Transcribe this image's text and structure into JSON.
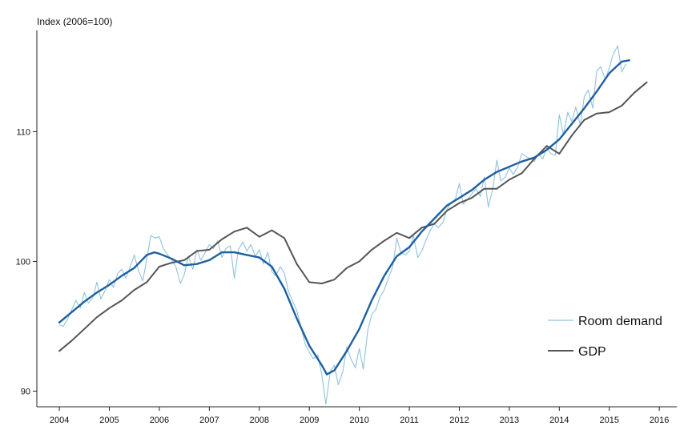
{
  "chart_data": {
    "type": "line",
    "ylabel": "Index (2006=100)",
    "xlim": [
      2003.55,
      2016.35
    ],
    "ylim": [
      88.8,
      117.8
    ],
    "x_ticks": [
      2004,
      2005,
      2006,
      2007,
      2008,
      2009,
      2010,
      2011,
      2012,
      2013,
      2014,
      2015,
      2016
    ],
    "x_tick_labels": [
      "2004",
      "2005",
      "2006",
      "2007",
      "2008",
      "2009",
      "2010",
      "2011",
      "2012",
      "2013",
      "2014",
      "2015",
      "2016"
    ],
    "y_ticks": [
      90,
      100,
      110
    ],
    "y_tick_labels": [
      "90",
      "100",
      "110"
    ],
    "grid": false,
    "legend_position": "bottom-right",
    "colors": {
      "room_demand_raw": "#8fc3dd",
      "room_demand_trend": "#1f5fa0",
      "gdp": "#555555"
    },
    "series": [
      {
        "name": "Room demand",
        "style": "raw",
        "x": [
          2004.0,
          2004.08,
          2004.17,
          2004.25,
          2004.33,
          2004.42,
          2004.5,
          2004.58,
          2004.67,
          2004.75,
          2004.83,
          2004.92,
          2005.0,
          2005.08,
          2005.17,
          2005.25,
          2005.33,
          2005.42,
          2005.5,
          2005.58,
          2005.67,
          2005.75,
          2005.83,
          2005.92,
          2006.0,
          2006.08,
          2006.17,
          2006.25,
          2006.33,
          2006.42,
          2006.5,
          2006.58,
          2006.67,
          2006.75,
          2006.83,
          2006.92,
          2007.0,
          2007.08,
          2007.17,
          2007.25,
          2007.33,
          2007.42,
          2007.5,
          2007.58,
          2007.67,
          2007.75,
          2007.83,
          2007.92,
          2008.0,
          2008.08,
          2008.17,
          2008.25,
          2008.33,
          2008.42,
          2008.5,
          2008.58,
          2008.67,
          2008.75,
          2008.83,
          2008.92,
          2009.0,
          2009.08,
          2009.17,
          2009.25,
          2009.33,
          2009.42,
          2009.5,
          2009.58,
          2009.67,
          2009.75,
          2009.83,
          2009.92,
          2010.0,
          2010.08,
          2010.17,
          2010.25,
          2010.33,
          2010.42,
          2010.5,
          2010.58,
          2010.67,
          2010.75,
          2010.83,
          2010.92,
          2011.0,
          2011.08,
          2011.17,
          2011.25,
          2011.33,
          2011.42,
          2011.5,
          2011.58,
          2011.67,
          2011.75,
          2011.83,
          2011.92,
          2012.0,
          2012.08,
          2012.17,
          2012.25,
          2012.33,
          2012.42,
          2012.5,
          2012.58,
          2012.67,
          2012.75,
          2012.83,
          2012.92,
          2013.0,
          2013.08,
          2013.17,
          2013.25,
          2013.33,
          2013.42,
          2013.5,
          2013.58,
          2013.67,
          2013.75,
          2013.83,
          2013.92,
          2014.0,
          2014.08,
          2014.17,
          2014.25,
          2014.33,
          2014.42,
          2014.5,
          2014.58,
          2014.67,
          2014.75,
          2014.83,
          2014.92,
          2015.0,
          2015.08,
          2015.17,
          2015.25,
          2015.33
        ],
        "values": [
          95.1,
          95.0,
          95.6,
          96.3,
          97.0,
          96.4,
          97.6,
          96.8,
          97.2,
          98.4,
          97.1,
          97.8,
          98.6,
          98.0,
          99.1,
          99.4,
          98.7,
          99.6,
          100.5,
          99.3,
          98.5,
          100.2,
          102.0,
          101.8,
          101.9,
          101.0,
          100.5,
          100.1,
          99.6,
          98.3,
          99.0,
          100.4,
          99.4,
          100.9,
          100.1,
          100.7,
          101.3,
          101.0,
          101.6,
          100.3,
          101.0,
          101.2,
          98.7,
          100.9,
          101.5,
          100.8,
          101.3,
          100.4,
          100.9,
          99.8,
          100.7,
          99.2,
          98.9,
          99.6,
          99.1,
          97.7,
          96.9,
          96.2,
          95.0,
          93.6,
          93.0,
          92.5,
          92.8,
          91.3,
          89.0,
          91.5,
          92.0,
          90.5,
          91.5,
          93.4,
          92.5,
          91.8,
          93.3,
          91.7,
          94.7,
          95.9,
          96.3,
          97.3,
          97.8,
          98.7,
          99.6,
          101.8,
          100.7,
          100.5,
          100.8,
          102.0,
          100.3,
          100.8,
          101.6,
          102.4,
          102.9,
          102.6,
          103.0,
          104.0,
          104.5,
          104.8,
          106.0,
          104.4,
          104.8,
          105.2,
          105.6,
          105.0,
          106.5,
          104.2,
          105.6,
          107.8,
          106.2,
          106.5,
          107.2,
          106.7,
          107.3,
          108.3,
          108.1,
          107.9,
          107.7,
          108.3,
          107.9,
          108.8,
          108.3,
          108.2,
          111.3,
          109.8,
          111.5,
          110.8,
          111.9,
          110.5,
          112.7,
          113.2,
          111.8,
          114.7,
          115.0,
          114.0,
          114.9,
          116.0,
          116.6,
          114.6,
          115.2
        ]
      },
      {
        "name": "Room demand",
        "style": "trend",
        "x": [
          2004.0,
          2004.25,
          2004.5,
          2004.75,
          2005.0,
          2005.25,
          2005.5,
          2005.75,
          2005.9,
          2006.0,
          2006.25,
          2006.5,
          2006.75,
          2007.0,
          2007.25,
          2007.5,
          2007.75,
          2008.0,
          2008.25,
          2008.5,
          2008.75,
          2009.0,
          2009.25,
          2009.35,
          2009.5,
          2009.75,
          2010.0,
          2010.25,
          2010.5,
          2010.75,
          2011.0,
          2011.25,
          2011.5,
          2011.75,
          2012.0,
          2012.25,
          2012.5,
          2012.75,
          2013.0,
          2013.25,
          2013.5,
          2013.75,
          2014.0,
          2014.25,
          2014.5,
          2014.75,
          2015.0,
          2015.25,
          2015.4
        ],
        "values": [
          95.3,
          96.1,
          96.9,
          97.6,
          98.2,
          98.9,
          99.5,
          100.5,
          100.7,
          100.6,
          100.2,
          99.7,
          99.8,
          100.1,
          100.7,
          100.7,
          100.5,
          100.3,
          99.6,
          97.9,
          95.6,
          93.5,
          92.0,
          91.3,
          91.6,
          93.1,
          94.8,
          97.0,
          98.9,
          100.4,
          101.1,
          102.3,
          103.3,
          104.3,
          104.9,
          105.5,
          106.3,
          106.9,
          107.3,
          107.7,
          108.0,
          108.6,
          109.4,
          110.6,
          111.8,
          113.1,
          114.5,
          115.4,
          115.5
        ]
      },
      {
        "name": "GDP",
        "style": "gdp",
        "x": [
          2004.0,
          2004.25,
          2004.5,
          2004.75,
          2005.0,
          2005.25,
          2005.5,
          2005.75,
          2006.0,
          2006.25,
          2006.5,
          2006.75,
          2007.0,
          2007.25,
          2007.5,
          2007.75,
          2008.0,
          2008.25,
          2008.5,
          2008.75,
          2009.0,
          2009.25,
          2009.5,
          2009.75,
          2010.0,
          2010.25,
          2010.5,
          2010.75,
          2011.0,
          2011.25,
          2011.5,
          2011.75,
          2012.0,
          2012.25,
          2012.5,
          2012.75,
          2013.0,
          2013.25,
          2013.5,
          2013.75,
          2014.0,
          2014.25,
          2014.5,
          2014.75,
          2015.0,
          2015.25,
          2015.5,
          2015.75
        ],
        "values": [
          93.1,
          93.9,
          94.8,
          95.7,
          96.4,
          97.0,
          97.8,
          98.4,
          99.6,
          99.9,
          100.1,
          100.8,
          100.9,
          101.7,
          102.3,
          102.6,
          101.9,
          102.4,
          101.8,
          99.8,
          98.4,
          98.3,
          98.6,
          99.5,
          100.0,
          100.9,
          101.6,
          102.2,
          101.8,
          102.6,
          102.9,
          103.9,
          104.5,
          104.9,
          105.6,
          105.6,
          106.3,
          106.8,
          107.9,
          108.9,
          108.3,
          109.7,
          110.9,
          111.4,
          111.5,
          112.0,
          113.0,
          113.8
        ]
      }
    ]
  }
}
